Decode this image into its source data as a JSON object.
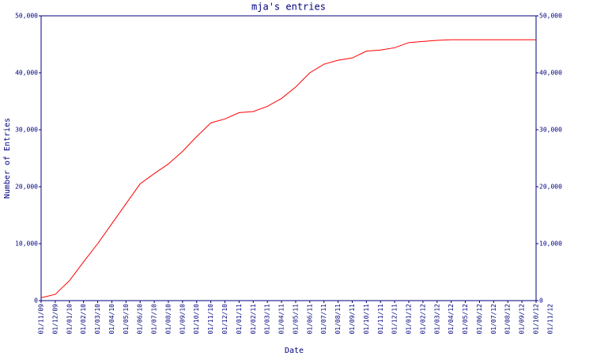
{
  "chart_data": {
    "type": "line",
    "title": "mja's entries",
    "xlabel": "Date",
    "ylabel": "Number of Entries",
    "categories": [
      "01/11/09",
      "01/12/09",
      "01/01/10",
      "01/02/10",
      "01/03/10",
      "01/04/10",
      "01/05/10",
      "01/06/10",
      "01/07/10",
      "01/08/10",
      "01/09/10",
      "01/10/10",
      "01/11/10",
      "01/12/10",
      "01/01/11",
      "01/02/11",
      "01/03/11",
      "01/04/11",
      "01/05/11",
      "01/06/11",
      "01/07/11",
      "01/08/11",
      "01/09/11",
      "01/10/11",
      "01/11/11",
      "01/12/11",
      "01/01/12",
      "01/02/12",
      "01/03/12",
      "01/04/12",
      "01/05/12",
      "01/06/12",
      "01/07/12",
      "01/08/12",
      "01/09/12",
      "01/10/12",
      "01/11/12"
    ],
    "series": [
      {
        "name": "entries",
        "color": "#ff0000",
        "values": [
          500,
          1100,
          3500,
          6800,
          10000,
          13500,
          17000,
          20500,
          22300,
          24000,
          26200,
          28800,
          31200,
          31900,
          33000,
          33200,
          34100,
          35500,
          37500,
          40000,
          41500,
          42200,
          42600,
          43800,
          44000,
          44400,
          45300,
          45500,
          45700,
          45800,
          45800,
          45800,
          45800,
          45800,
          45800,
          45800,
          null
        ]
      }
    ],
    "ylim": [
      0,
      50000
    ],
    "yticks": [
      0,
      {
        "value": 10000,
        "label": "10,000"
      },
      {
        "value": 20000,
        "label": "20,000"
      },
      {
        "value": 30000,
        "label": "30,000"
      },
      {
        "value": 40000,
        "label": "40,000"
      },
      {
        "value": 50000,
        "label": "50,000"
      }
    ],
    "y2lim": [
      0,
      50000
    ],
    "y2ticks": [
      0,
      {
        "value": 10000,
        "label": "10,000"
      },
      {
        "value": 20000,
        "label": "20,000"
      },
      {
        "value": 30000,
        "label": "30,000"
      },
      {
        "value": 40000,
        "label": "40,000"
      },
      {
        "value": 50000,
        "label": "50,000"
      }
    ],
    "axis_color": "#000080"
  }
}
